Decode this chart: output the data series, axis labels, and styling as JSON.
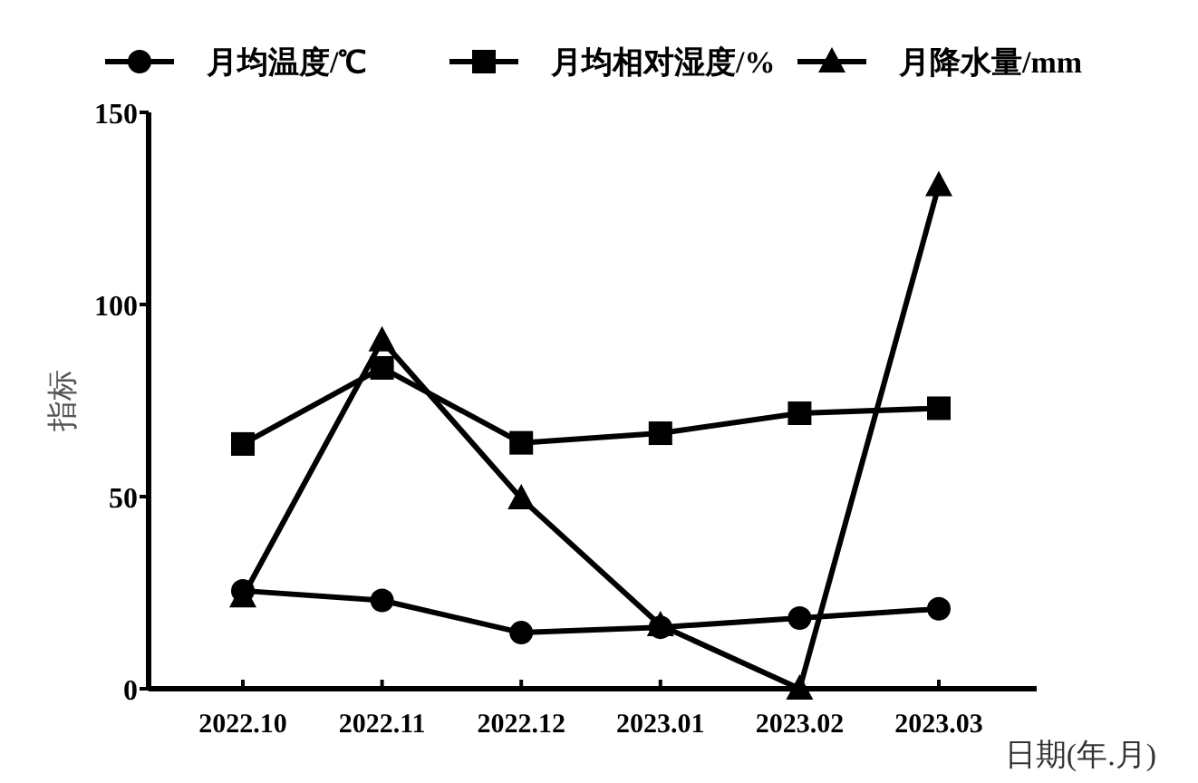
{
  "chart_data": {
    "type": "line",
    "xlabel": "日期(年.月)",
    "ylabel": "指标",
    "categories": [
      "2022.10",
      "2022.11",
      "2022.12",
      "2023.01",
      "2023.02",
      "2023.03"
    ],
    "series": [
      {
        "name": "月均温度/℃",
        "color": "#000000",
        "marker": "circle",
        "values": [
          25.5,
          23,
          14.6,
          16,
          18.4,
          20.8
        ]
      },
      {
        "name": "月均相对湿度/%",
        "color": "#000000",
        "marker": "square",
        "values": [
          63.7,
          83.5,
          64,
          66.5,
          71.7,
          73
        ]
      },
      {
        "name": "月降水量/mm",
        "color": "#000000",
        "marker": "triangle",
        "values": [
          24,
          90.6,
          49.5,
          16.5,
          0,
          131
        ]
      }
    ],
    "ylim": [
      0,
      150
    ],
    "yticks": [
      0,
      50,
      100,
      150
    ],
    "legend": "top",
    "grid": false,
    "line_style": "solid"
  }
}
